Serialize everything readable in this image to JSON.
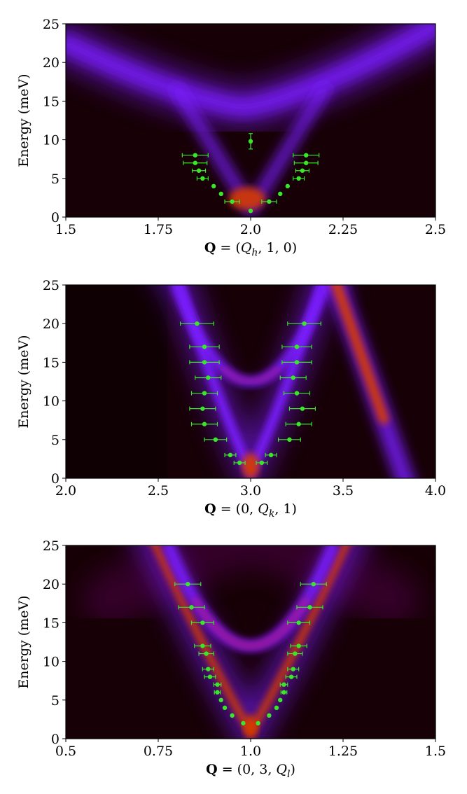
{
  "colors": {
    "background_dark": "#170006",
    "band_purple": "#7a1cff",
    "band_bright": "#a055ff",
    "band_red": "#d43b00",
    "marker_green": "#39e629",
    "axes_text": "#000000"
  },
  "chart_data": [
    {
      "type": "heatmap",
      "title": "",
      "ylabel": "Energy (meV)",
      "xlabel": {
        "bold": "Q",
        "rest": " = (Q",
        "sub": "h",
        "tail": ", 1, 0)"
      },
      "xlim": [
        1.5,
        2.5
      ],
      "ylim": [
        0,
        25
      ],
      "xticks": [
        1.5,
        1.75,
        2.0,
        2.25,
        2.5
      ],
      "xtick_labels": [
        "1.5",
        "1.75",
        "2.0",
        "2.25",
        "2.5"
      ],
      "yticks": [
        0,
        5,
        10,
        15,
        20,
        25
      ],
      "ytick_labels": [
        "0",
        "5",
        "10",
        "15",
        "20",
        "25"
      ],
      "points": [
        {
          "x": 1.85,
          "y": 8.0,
          "xerr": 0.035
        },
        {
          "x": 1.85,
          "y": 7.0,
          "xerr": 0.032
        },
        {
          "x": 1.86,
          "y": 6.0,
          "xerr": 0.018
        },
        {
          "x": 1.87,
          "y": 5.0,
          "xerr": 0.015
        },
        {
          "x": 1.9,
          "y": 4.0,
          "xerr": 0.0
        },
        {
          "x": 1.92,
          "y": 3.0,
          "xerr": 0.0
        },
        {
          "x": 1.95,
          "y": 2.0,
          "xerr": 0.02
        },
        {
          "x": 2.0,
          "y": 0.8,
          "xerr": 0.0
        },
        {
          "x": 2.0,
          "y": 9.8,
          "xerr": 0.0,
          "yerr": 1.0
        },
        {
          "x": 2.05,
          "y": 2.0,
          "xerr": 0.02
        },
        {
          "x": 2.08,
          "y": 3.0,
          "xerr": 0.0
        },
        {
          "x": 2.1,
          "y": 4.0,
          "xerr": 0.0
        },
        {
          "x": 2.13,
          "y": 5.0,
          "xerr": 0.015
        },
        {
          "x": 2.14,
          "y": 6.0,
          "xerr": 0.018
        },
        {
          "x": 2.15,
          "y": 7.0,
          "xerr": 0.032
        },
        {
          "x": 2.15,
          "y": 8.0,
          "xerr": 0.035
        }
      ]
    },
    {
      "type": "heatmap",
      "title": "",
      "ylabel": "Energy (meV)",
      "xlabel": {
        "bold": "Q",
        "rest": " = (0, Q",
        "sub": "k",
        "tail": ", 1)"
      },
      "xlim": [
        2.0,
        4.0
      ],
      "ylim": [
        0,
        25
      ],
      "xticks": [
        2.0,
        2.5,
        3.0,
        3.5,
        4.0
      ],
      "xtick_labels": [
        "2.0",
        "2.5",
        "3.0",
        "3.5",
        "4.0"
      ],
      "yticks": [
        0,
        5,
        10,
        15,
        20,
        25
      ],
      "ytick_labels": [
        "0",
        "5",
        "10",
        "15",
        "20",
        "25"
      ],
      "points": [
        {
          "x": 2.71,
          "y": 20.0,
          "xerr": 0.09
        },
        {
          "x": 2.75,
          "y": 17.0,
          "xerr": 0.08
        },
        {
          "x": 2.75,
          "y": 15.0,
          "xerr": 0.08
        },
        {
          "x": 2.77,
          "y": 13.0,
          "xerr": 0.07
        },
        {
          "x": 2.75,
          "y": 11.0,
          "xerr": 0.07
        },
        {
          "x": 2.74,
          "y": 9.0,
          "xerr": 0.07
        },
        {
          "x": 2.75,
          "y": 7.0,
          "xerr": 0.07
        },
        {
          "x": 2.81,
          "y": 5.0,
          "xerr": 0.06
        },
        {
          "x": 2.89,
          "y": 3.0,
          "xerr": 0.03
        },
        {
          "x": 2.94,
          "y": 2.0,
          "xerr": 0.03
        },
        {
          "x": 3.06,
          "y": 2.0,
          "xerr": 0.03
        },
        {
          "x": 3.11,
          "y": 3.0,
          "xerr": 0.03
        },
        {
          "x": 3.21,
          "y": 5.0,
          "xerr": 0.06
        },
        {
          "x": 3.26,
          "y": 7.0,
          "xerr": 0.07
        },
        {
          "x": 3.28,
          "y": 9.0,
          "xerr": 0.07
        },
        {
          "x": 3.25,
          "y": 11.0,
          "xerr": 0.07
        },
        {
          "x": 3.23,
          "y": 13.0,
          "xerr": 0.07
        },
        {
          "x": 3.25,
          "y": 15.0,
          "xerr": 0.08
        },
        {
          "x": 3.25,
          "y": 17.0,
          "xerr": 0.08
        },
        {
          "x": 3.29,
          "y": 20.0,
          "xerr": 0.09
        }
      ]
    },
    {
      "type": "heatmap",
      "title": "",
      "ylabel": "Energy (meV)",
      "xlabel": {
        "bold": "Q",
        "rest": " = (0, 3, Q",
        "sub": "l",
        "tail": ")"
      },
      "xlim": [
        0.5,
        1.5
      ],
      "ylim": [
        0,
        25
      ],
      "xticks": [
        0.5,
        0.75,
        1.0,
        1.25,
        1.5
      ],
      "xtick_labels": [
        "0.5",
        "0.75",
        "1.0",
        "1.25",
        "1.5"
      ],
      "yticks": [
        0,
        5,
        10,
        15,
        20,
        25
      ],
      "ytick_labels": [
        "0",
        "5",
        "10",
        "15",
        "20",
        "25"
      ],
      "points": [
        {
          "x": 0.83,
          "y": 20.0,
          "xerr": 0.035
        },
        {
          "x": 0.84,
          "y": 17.0,
          "xerr": 0.035
        },
        {
          "x": 0.87,
          "y": 15.0,
          "xerr": 0.03
        },
        {
          "x": 0.87,
          "y": 12.0,
          "xerr": 0.022
        },
        {
          "x": 0.88,
          "y": 11.0,
          "xerr": 0.02
        },
        {
          "x": 0.885,
          "y": 9.0,
          "xerr": 0.015
        },
        {
          "x": 0.89,
          "y": 8.0,
          "xerr": 0.015
        },
        {
          "x": 0.91,
          "y": 7.0,
          "xerr": 0.01
        },
        {
          "x": 0.91,
          "y": 6.0,
          "xerr": 0.008
        },
        {
          "x": 0.92,
          "y": 5.0,
          "xerr": 0.0
        },
        {
          "x": 0.93,
          "y": 4.0,
          "xerr": 0.0
        },
        {
          "x": 0.95,
          "y": 3.0,
          "xerr": 0.0
        },
        {
          "x": 0.98,
          "y": 2.0,
          "xerr": 0.0
        },
        {
          "x": 1.02,
          "y": 2.0,
          "xerr": 0.0
        },
        {
          "x": 1.05,
          "y": 3.0,
          "xerr": 0.0
        },
        {
          "x": 1.07,
          "y": 4.0,
          "xerr": 0.0
        },
        {
          "x": 1.08,
          "y": 5.0,
          "xerr": 0.0
        },
        {
          "x": 1.09,
          "y": 6.0,
          "xerr": 0.008
        },
        {
          "x": 1.09,
          "y": 7.0,
          "xerr": 0.01
        },
        {
          "x": 1.11,
          "y": 8.0,
          "xerr": 0.015
        },
        {
          "x": 1.115,
          "y": 9.0,
          "xerr": 0.015
        },
        {
          "x": 1.12,
          "y": 11.0,
          "xerr": 0.02
        },
        {
          "x": 1.13,
          "y": 12.0,
          "xerr": 0.022
        },
        {
          "x": 1.13,
          "y": 15.0,
          "xerr": 0.03
        },
        {
          "x": 1.16,
          "y": 17.0,
          "xerr": 0.035
        },
        {
          "x": 1.17,
          "y": 20.0,
          "xerr": 0.035
        }
      ]
    }
  ]
}
